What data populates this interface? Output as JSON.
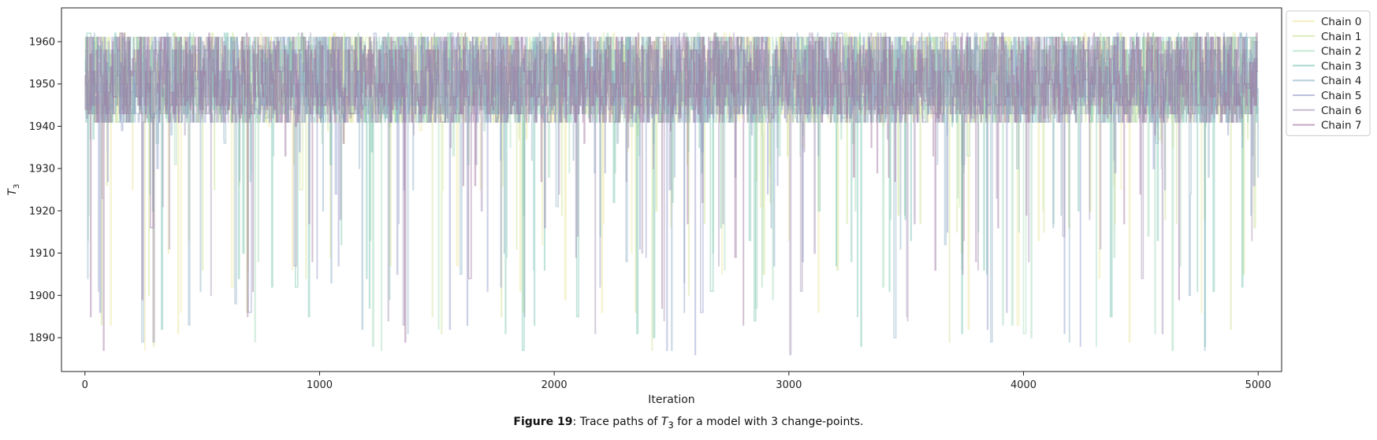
{
  "chart_data": {
    "type": "line",
    "xlabel": "Iteration",
    "ylabel_symbol": "T",
    "ylabel_sub": "3",
    "xlim": [
      -100,
      5100
    ],
    "ylim": [
      1882,
      1968
    ],
    "x_ticks": [
      0,
      1000,
      2000,
      3000,
      4000,
      5000
    ],
    "y_ticks": [
      1890,
      1900,
      1910,
      1920,
      1930,
      1940,
      1950,
      1960
    ],
    "iterations": 5000,
    "value_range": [
      1886,
      1962
    ],
    "typical_band": [
      1942,
      1962
    ],
    "modes": [
      1947,
      1950,
      1943,
      1945,
      1953,
      1958,
      1961,
      1941
    ],
    "legend_position": "upper-right-outside",
    "series": [
      {
        "name": "Chain 0",
        "color": "#ece59a"
      },
      {
        "name": "Chain 1",
        "color": "#c9e08d"
      },
      {
        "name": "Chain 2",
        "color": "#9fd8b7"
      },
      {
        "name": "Chain 3",
        "color": "#72c0ad"
      },
      {
        "name": "Chain 4",
        "color": "#8aaec4"
      },
      {
        "name": "Chain 5",
        "color": "#8f96c7"
      },
      {
        "name": "Chain 6",
        "color": "#a08db2"
      },
      {
        "name": "Chain 7",
        "color": "#9a6c98"
      }
    ]
  },
  "caption": {
    "figure_label": "Figure 19",
    "prefix": ": Trace paths of ",
    "symbol": "T",
    "sub": "3",
    "suffix": " for a model with 3 change-points."
  }
}
